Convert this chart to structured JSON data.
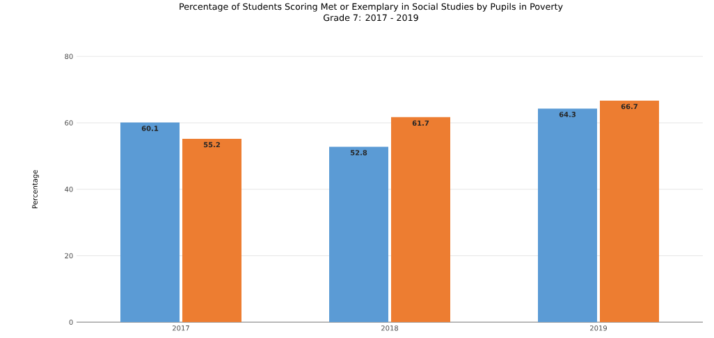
{
  "chart_data": {
    "type": "bar",
    "title": "Percentage of Students Scoring Met or Exemplary in Social Studies  by Pupils in Poverty",
    "subtitle": "Grade 7: 2017 - 2019",
    "ylabel": "Percentage",
    "categories": [
      "2017",
      "2018",
      "2019"
    ],
    "series": [
      {
        "color": "#5b9bd5",
        "values": [
          60.1,
          52.8,
          64.3
        ]
      },
      {
        "color": "#ed7d31",
        "values": [
          55.2,
          61.7,
          66.7
        ]
      }
    ],
    "ylim": [
      0,
      80
    ],
    "yticks": [
      0,
      20,
      40,
      60,
      80
    ],
    "grid": "y",
    "data_labels": true
  }
}
